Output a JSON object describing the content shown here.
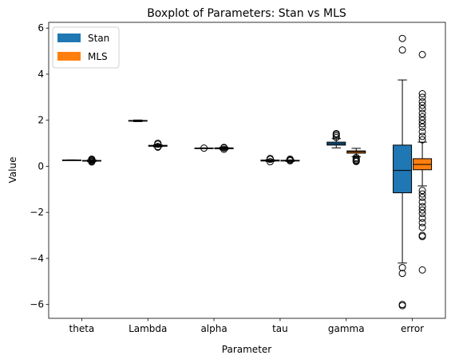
{
  "chart_data": {
    "type": "boxplot",
    "title": "Boxplot of Parameters: Stan vs MLS",
    "xlabel": "Parameter",
    "ylabel": "Value",
    "categories": [
      "theta",
      "Lambda",
      "alpha",
      "tau",
      "gamma",
      "error"
    ],
    "ylim": [
      -6.6,
      6.25
    ],
    "yticks": [
      -6,
      -4,
      -2,
      0,
      2,
      4,
      6
    ],
    "grid": false,
    "legend_position": "upper-left",
    "series": [
      {
        "name": "Stan",
        "color": "#1f77b4",
        "boxes": [
          {
            "whislo": 0.26,
            "q1": 0.265,
            "med": 0.27,
            "q3": 0.275,
            "whishi": 0.28,
            "fliers": []
          },
          {
            "whislo": 1.94,
            "q1": 1.96,
            "med": 1.975,
            "q3": 1.99,
            "whishi": 2.01,
            "fliers": []
          },
          {
            "whislo": 0.78,
            "q1": 0.785,
            "med": 0.79,
            "q3": 0.795,
            "whishi": 0.8,
            "fliers": [
              0.79
            ]
          },
          {
            "whislo": 0.21,
            "q1": 0.23,
            "med": 0.25,
            "q3": 0.27,
            "whishi": 0.29,
            "fliers": [
              0.2,
              0.3,
              0.34
            ]
          },
          {
            "whislo": 0.8,
            "q1": 0.92,
            "med": 0.98,
            "q3": 1.05,
            "whishi": 1.2,
            "fliers": [
              1.25,
              1.32,
              1.38,
              1.42
            ]
          },
          {
            "whislo": -4.2,
            "q1": -1.15,
            "med": -0.18,
            "q3": 0.92,
            "whishi": 3.75,
            "fliers": [
              5.55,
              5.05,
              -4.4,
              -4.65,
              -6.0,
              -6.05
            ]
          }
        ]
      },
      {
        "name": "MLS",
        "color": "#ff7f0e",
        "boxes": [
          {
            "whislo": 0.2,
            "q1": 0.225,
            "med": 0.24,
            "q3": 0.255,
            "whishi": 0.28,
            "fliers": [
              0.19,
              0.22,
              0.26,
              0.29,
              0.31
            ]
          },
          {
            "whislo": 0.84,
            "q1": 0.87,
            "med": 0.89,
            "q3": 0.91,
            "whishi": 0.94,
            "fliers": [
              0.83,
              0.86,
              0.96,
              1.0
            ]
          },
          {
            "whislo": 0.72,
            "q1": 0.76,
            "med": 0.78,
            "q3": 0.8,
            "whishi": 0.83,
            "fliers": [
              0.74,
              0.8,
              0.82
            ]
          },
          {
            "whislo": 0.21,
            "q1": 0.23,
            "med": 0.25,
            "q3": 0.26,
            "whishi": 0.28,
            "fliers": [
              0.24,
              0.28,
              0.31
            ]
          },
          {
            "whislo": 0.42,
            "q1": 0.57,
            "med": 0.63,
            "q3": 0.67,
            "whishi": 0.78,
            "fliers": [
              0.38,
              0.33,
              0.28,
              0.24,
              0.21
            ]
          },
          {
            "whislo": -0.85,
            "q1": -0.15,
            "med": 0.08,
            "q3": 0.33,
            "whishi": 1.05,
            "fliers": [
              4.85,
              3.15,
              3.0,
              2.8,
              2.65,
              2.5,
              2.3,
              2.15,
              2.0,
              1.85,
              1.7,
              1.5,
              1.3,
              1.15,
              -1.05,
              -1.2,
              -1.35,
              -1.55,
              -1.75,
              -1.9,
              -2.05,
              -2.25,
              -2.45,
              -2.65,
              -3.0,
              -3.05,
              -4.5
            ]
          }
        ]
      }
    ]
  }
}
